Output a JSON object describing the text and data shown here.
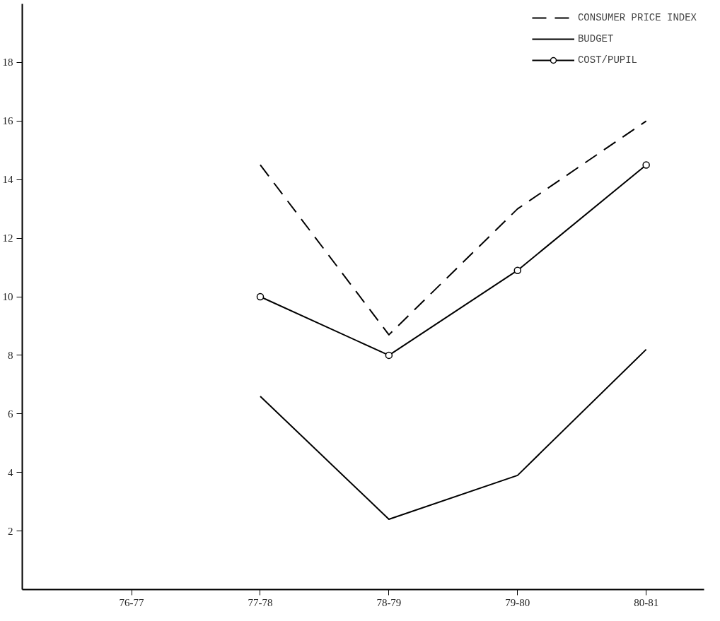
{
  "chart_data": {
    "type": "line",
    "categories": [
      "76-77",
      "77-78",
      "78-79",
      "79-80",
      "80-81"
    ],
    "ylim": [
      0,
      20
    ],
    "yticks": [
      2,
      4,
      6,
      8,
      10,
      12,
      14,
      16,
      18
    ],
    "grid": false,
    "legend": "top right",
    "series": [
      {
        "name": "CONSUMER PRICE INDEX",
        "color": "#000000",
        "line_style": "dashed",
        "marker": "none",
        "values": [
          null,
          14.5,
          8.7,
          13.0,
          16.0
        ]
      },
      {
        "name": "BUDGET",
        "color": "#000000",
        "line_style": "solid",
        "marker": "none",
        "values": [
          null,
          6.6,
          2.4,
          3.9,
          8.2
        ]
      },
      {
        "name": "COST/PUPIL",
        "color": "#000000",
        "line_style": "solid",
        "marker": "circle",
        "values": [
          null,
          10.0,
          8.0,
          10.9,
          14.5
        ]
      }
    ]
  }
}
